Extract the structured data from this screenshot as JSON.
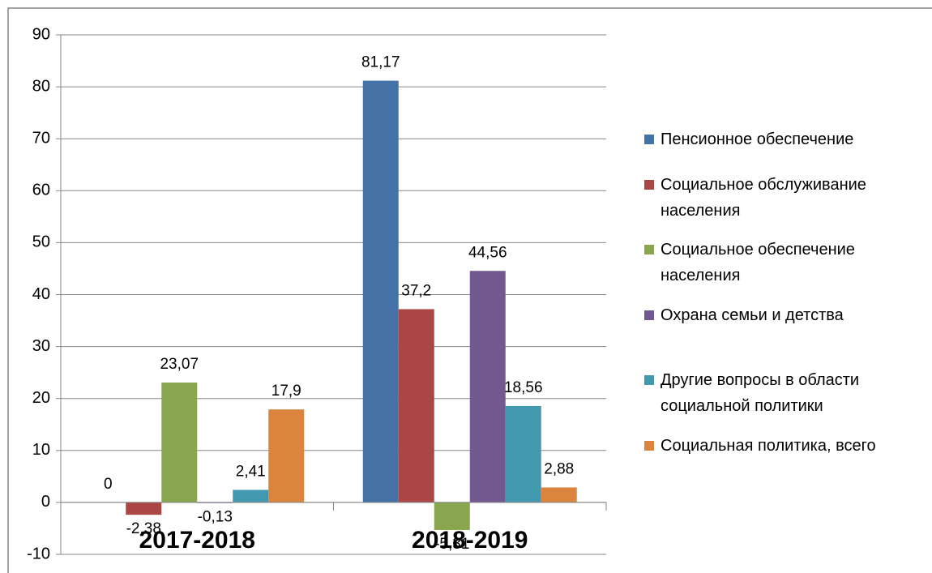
{
  "chart_data": {
    "type": "bar",
    "categories": [
      "2017-2018",
      "2018-2019"
    ],
    "series": [
      {
        "name": "Пенсионное обеспечение",
        "color": "#4572a7",
        "values": [
          0,
          81.17
        ],
        "value_labels": [
          "0",
          "81,17"
        ]
      },
      {
        "name": "Социальное обслуживание населения",
        "color": "#aa4643",
        "values": [
          -2.38,
          37.2
        ],
        "value_labels": [
          "-2,38",
          "37,2"
        ]
      },
      {
        "name": "Социальное обеспечение населения",
        "color": "#89a54e",
        "values": [
          23.07,
          -5.31
        ],
        "value_labels": [
          "23,07",
          "-5,31"
        ]
      },
      {
        "name": "Охрана семьи и детства",
        "color": "#71588f",
        "values": [
          -0.13,
          44.56
        ],
        "value_labels": [
          "-0,13",
          "44,56"
        ]
      },
      {
        "name": "Другие вопросы в области социальной политики",
        "color": "#4198af",
        "values": [
          2.41,
          18.56
        ],
        "value_labels": [
          "2,41",
          "18,56"
        ]
      },
      {
        "name": "Социальная политика, всего",
        "color": "#db843d",
        "values": [
          17.9,
          2.88
        ],
        "value_labels": [
          "17,9",
          "2,88"
        ]
      }
    ],
    "ylim": [
      -10,
      90
    ],
    "yticks": [
      -10,
      0,
      10,
      20,
      30,
      40,
      50,
      60,
      70,
      80,
      90
    ],
    "grid": true,
    "legend": "right"
  }
}
